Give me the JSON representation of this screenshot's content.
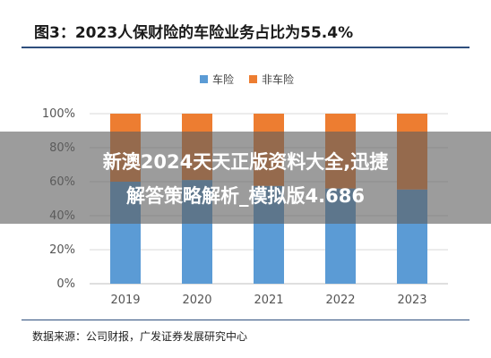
{
  "header": {
    "title": "图3：2023人保财险的车险业务占比为55.4%"
  },
  "footer": {
    "source": "数据来源：公司财报，广发证券发展研究中心"
  },
  "watermark": {
    "line1": "新澳2024天天正版资料大全,迅捷",
    "line2": "解答策略解析_模拟版4.686"
  },
  "chart_data": {
    "type": "bar",
    "stacked": true,
    "categories": [
      "2019",
      "2020",
      "2021",
      "2022",
      "2023"
    ],
    "series": [
      {
        "name": "车险",
        "color": "#5b9bd5",
        "values": [
          60.0,
          61.0,
          57.5,
          56.0,
          55.4
        ]
      },
      {
        "name": "非车险",
        "color": "#ed7d31",
        "values": [
          40.0,
          39.0,
          42.5,
          44.0,
          44.6
        ]
      }
    ],
    "ylim": [
      0,
      100
    ],
    "yticks": [
      "0%",
      "20%",
      "40%",
      "60%",
      "80%",
      "100%"
    ],
    "legend_position": "top-center",
    "grid": true
  }
}
